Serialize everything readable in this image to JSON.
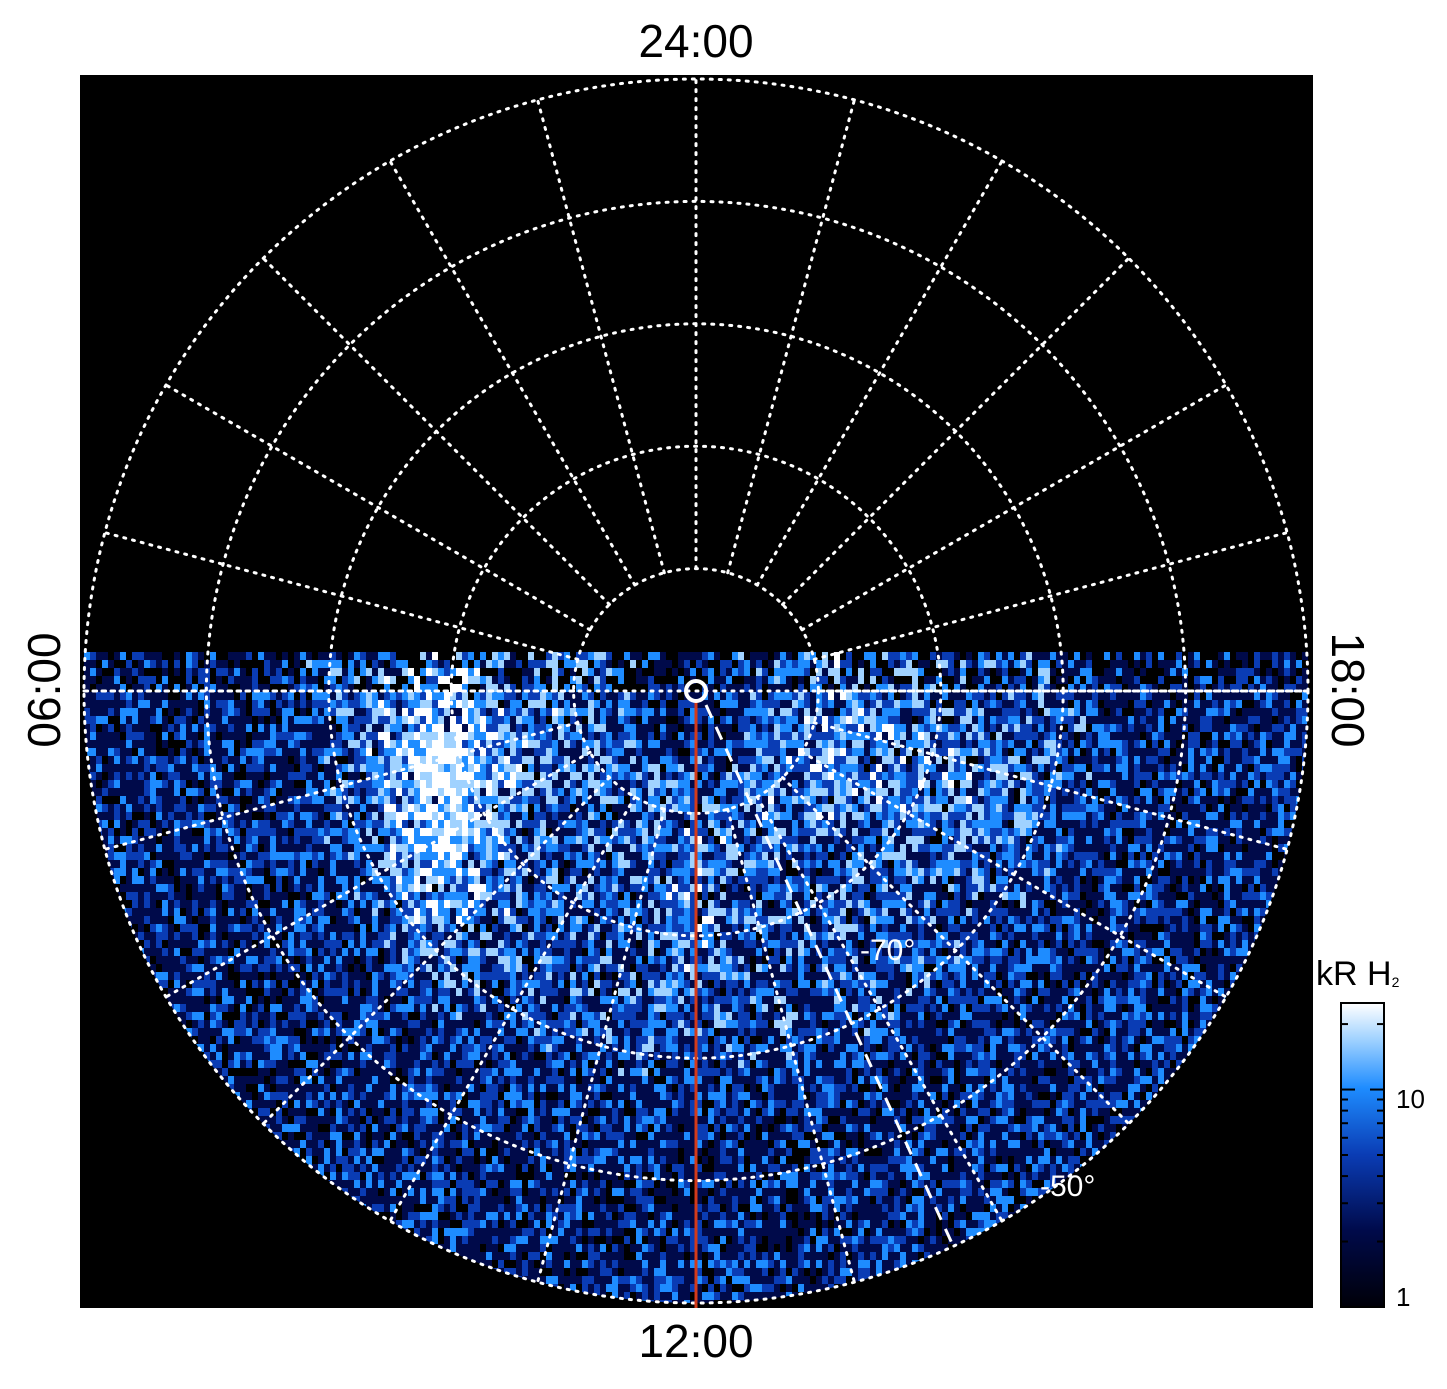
{
  "chart_data": {
    "type": "heatmap",
    "projection": "polar-stereographic",
    "hemisphere": "southern",
    "local_time_labels": {
      "top": "24:00",
      "bottom": "12:00",
      "left": "06:00",
      "right": "18:00"
    },
    "latitude_labels": [
      "-70°",
      "-50°"
    ],
    "latitude_circles_deg": [
      -80,
      -70,
      -60,
      -50,
      -40
    ],
    "meridian_step_hours": 1,
    "illuminated_region": "dayside half (06:00 through 12:00 to 18:00)",
    "colorbar": {
      "title": "kR H",
      "title_subscript": "2",
      "scale": "log",
      "range": [
        1,
        25
      ],
      "ticks": [
        {
          "value": 1,
          "label": "1"
        },
        {
          "value": 10,
          "label": "10"
        }
      ],
      "colormap": [
        "#000008",
        "#000a4a",
        "#0a3cb4",
        "#1e8cff",
        "#a0d2ff",
        "#ffffff"
      ]
    },
    "overlays": {
      "red_meridian_local_time": "12:00",
      "red_meridian_color": "#d43a1a",
      "dashed_white_line": "from near pole toward ~13:30 LT",
      "pole_marker": "white ring"
    },
    "grid": true,
    "background_color": "#000000"
  }
}
